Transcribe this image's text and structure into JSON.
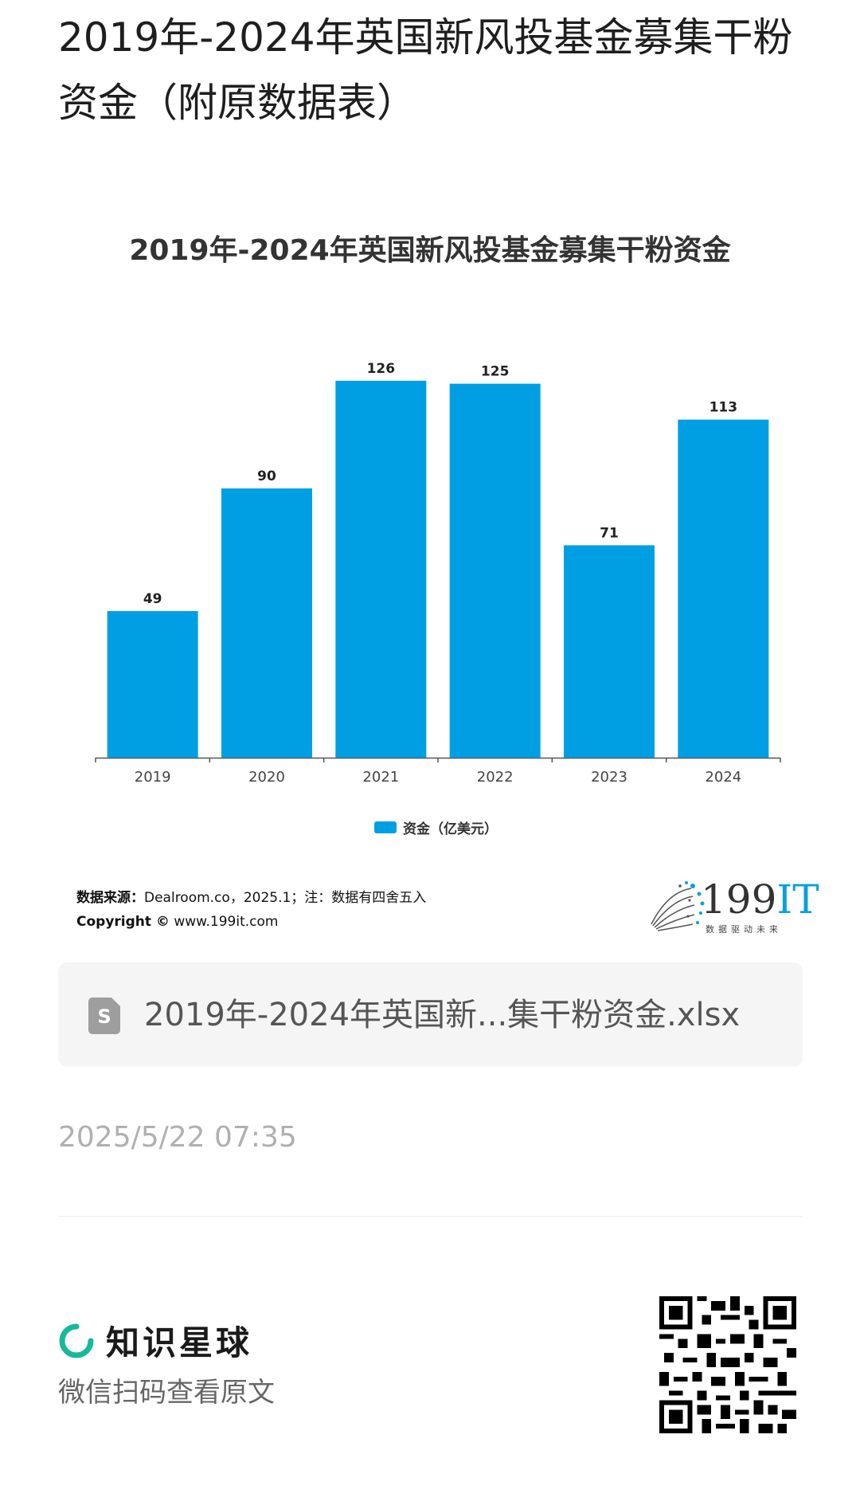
{
  "page": {
    "title": "2019年-2024年英国新风投基金募集干粉资金（附原数据表）"
  },
  "chart_data": {
    "type": "bar",
    "title": "2019年-2024年英国新风投基金募集干粉资金",
    "categories": [
      "2019",
      "2020",
      "2021",
      "2022",
      "2023",
      "2024"
    ],
    "series": [
      {
        "name": "资金（亿美元）",
        "values": [
          49,
          90,
          126,
          125,
          71,
          113
        ],
        "color": "#009fe3"
      }
    ],
    "legend_position": "bottom-center",
    "grid": false
  },
  "source": {
    "label": "数据来源：",
    "text": "Dealroom.co，2025.1；注：数据有四舍五入",
    "copyright_label": "Copyright ©",
    "copyright_url": "www.199it.com"
  },
  "logo": {
    "number": "199",
    "suffix": "IT",
    "tagline": "数据驱动未来"
  },
  "file": {
    "icon": "spreadsheet-s-icon",
    "icon_letter": "S",
    "name": "2019年-2024年英国新...集干粉资金.xlsx"
  },
  "timestamp": "2025/5/22 07:35",
  "footer": {
    "brand": "知识星球",
    "brand_icon": "knowledge-planet-ring-icon",
    "scan_text": "微信扫码查看原文"
  },
  "colors": {
    "accent": "#009fe3",
    "brand_green": "#16b998"
  }
}
